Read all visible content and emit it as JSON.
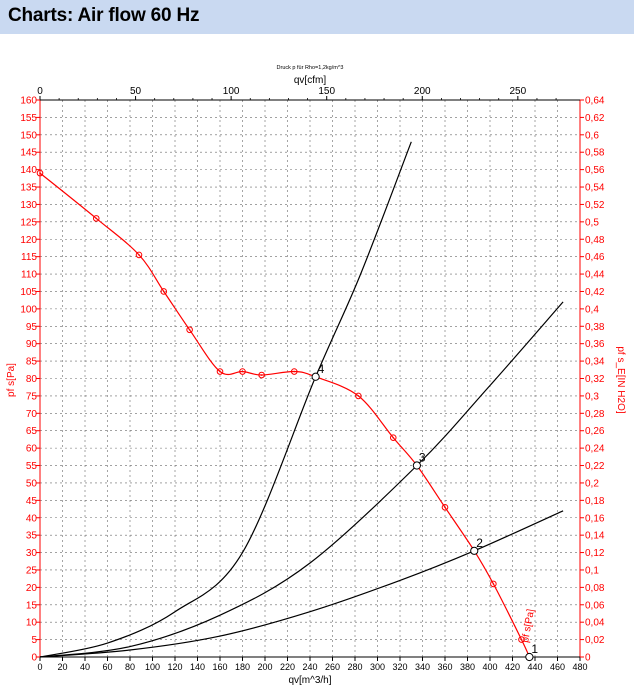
{
  "header": {
    "title": "Charts: Air flow 60 Hz"
  },
  "chart_data": {
    "type": "line",
    "subtitle": "Druck p für Rho=1,2kg/m^3",
    "top_axis_label": "qv[cfm]",
    "x_label": "qv[m^3/h]",
    "y_left_label": "pf s[Pa]",
    "y_right_label": "pf s_E[IN H2O]",
    "curve_label": "pf s[Pa]",
    "x_range": [
      0,
      480
    ],
    "y_range": [
      0,
      160
    ],
    "x_ticks": [
      0,
      20,
      40,
      60,
      80,
      100,
      120,
      140,
      160,
      180,
      200,
      220,
      240,
      260,
      280,
      300,
      320,
      340,
      360,
      380,
      400,
      420,
      440,
      460,
      480
    ],
    "y_ticks": [
      0,
      5,
      10,
      15,
      20,
      25,
      30,
      35,
      40,
      45,
      50,
      55,
      60,
      65,
      70,
      75,
      80,
      85,
      90,
      95,
      100,
      105,
      110,
      115,
      120,
      125,
      130,
      135,
      140,
      145,
      150,
      155,
      160
    ],
    "top_ticks": [
      0,
      50,
      100,
      150,
      200,
      250
    ],
    "right_ticks": [
      "0",
      "0,02",
      "0,04",
      "0,06",
      "0,08",
      "0,1",
      "0,12",
      "0,14",
      "0,16",
      "0,18",
      "0,2",
      "0,22",
      "0,24",
      "0,26",
      "0,28",
      "0,3",
      "0,32",
      "0,34",
      "0,36",
      "0,38",
      "0,4",
      "0,42",
      "0,44",
      "0,46",
      "0,48",
      "0,5",
      "0,52",
      "0,54",
      "0,56",
      "0,58",
      "0,6",
      "0,62",
      "0,64"
    ],
    "fan_curve": {
      "color": "#ff0000",
      "points": [
        [
          0,
          139
        ],
        [
          50,
          126
        ],
        [
          88,
          115.5
        ],
        [
          110,
          105
        ],
        [
          133,
          94
        ],
        [
          160,
          82
        ],
        [
          180,
          82
        ],
        [
          197,
          81
        ],
        [
          226,
          82
        ],
        [
          245,
          80.5
        ],
        [
          283,
          75
        ],
        [
          314,
          63
        ],
        [
          335,
          55
        ],
        [
          360,
          43
        ],
        [
          386,
          30.5
        ],
        [
          403,
          21
        ],
        [
          428,
          5
        ],
        [
          435,
          0
        ]
      ]
    },
    "system_curves": [
      {
        "color": "#000000",
        "points": [
          [
            0,
            0
          ],
          [
            60,
            4
          ],
          [
            120,
            13
          ],
          [
            180,
            30
          ],
          [
            245,
            80.5
          ],
          [
            285,
            110
          ],
          [
            330,
            148
          ]
        ]
      },
      {
        "color": "#000000",
        "points": [
          [
            0,
            0
          ],
          [
            80,
            3
          ],
          [
            160,
            12
          ],
          [
            240,
            27
          ],
          [
            335,
            55
          ],
          [
            400,
            78
          ],
          [
            465,
            102
          ]
        ]
      },
      {
        "color": "#000000",
        "points": [
          [
            0,
            0
          ],
          [
            80,
            2
          ],
          [
            160,
            6
          ],
          [
            240,
            13
          ],
          [
            320,
            22
          ],
          [
            386,
            30.5
          ],
          [
            465,
            42
          ]
        ]
      }
    ],
    "operating_points": [
      {
        "label": "1",
        "x": 435,
        "y": 0
      },
      {
        "label": "2",
        "x": 386,
        "y": 30.5
      },
      {
        "label": "3",
        "x": 335,
        "y": 55
      },
      {
        "label": "4",
        "x": 245,
        "y": 80.5
      }
    ]
  }
}
